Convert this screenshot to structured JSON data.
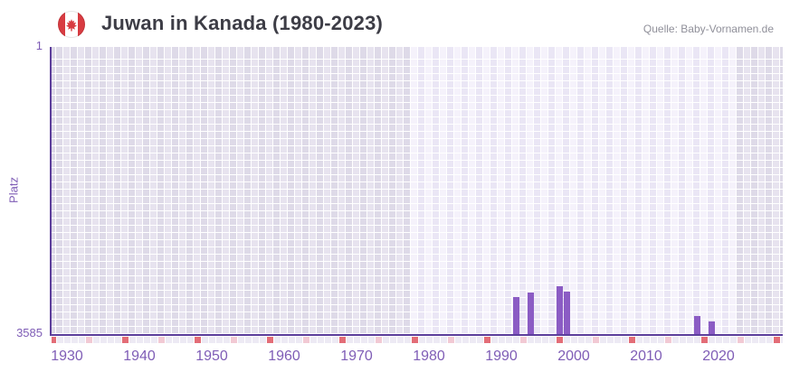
{
  "header": {
    "title": "Juwan in Kanada (1980-2023)",
    "source": "Quelle: Baby-Vornamen.de",
    "flag": "canada"
  },
  "chart_data": {
    "type": "bar",
    "title": "Juwan in Kanada (1980-2023)",
    "xlabel": "",
    "ylabel": "Platz",
    "legend": "none",
    "grid": "checkered-year-cells",
    "y_axis": {
      "top_tick": "1",
      "bottom_tick": "3585",
      "min": 1,
      "max": 3585,
      "inverted": true
    },
    "x_axis": {
      "tick_years": [
        1930,
        1940,
        1950,
        1960,
        1970,
        1980,
        1990,
        2000,
        2010,
        2020
      ],
      "domain_start": 1928,
      "domain_end": 2029
    },
    "series": [
      {
        "name": "Platz",
        "points": [
          {
            "year": 1992,
            "rank": 3110
          },
          {
            "year": 1994,
            "rank": 3055
          },
          {
            "year": 1998,
            "rank": 2975
          },
          {
            "year": 1999,
            "rank": 3045
          },
          {
            "year": 2017,
            "rank": 3345
          },
          {
            "year": 2019,
            "rank": 3415
          }
        ]
      }
    ],
    "highlight_year_range": [
      1978,
      2022
    ],
    "bottom_marker_years": {
      "red": [
        1928,
        1938,
        1948,
        1958,
        1968,
        1978,
        1988,
        1998,
        2008,
        2018,
        2028
      ],
      "pink": [
        1933,
        1943,
        1953,
        1963,
        1973,
        1983,
        1993,
        2003,
        2013,
        2023
      ]
    },
    "colors": {
      "bar": "#8b5cc4",
      "axis_line": "#5c3e9b",
      "axis_text": "#7f5db6",
      "title_text": "#3d3d46",
      "source_text": "#90909a",
      "marker_red": "#e36d77",
      "marker_pink": "#f2c9d4",
      "marker_base": "#edeaf4",
      "cell_dim_dark": "#dedae8",
      "cell_dim_light": "#e7e3ef",
      "cell_bright_light": "#f5f2fb",
      "cell_bright_dark": "#eae6f5",
      "grid_line": "#ffffff",
      "flag_red": "#d83b41"
    }
  }
}
